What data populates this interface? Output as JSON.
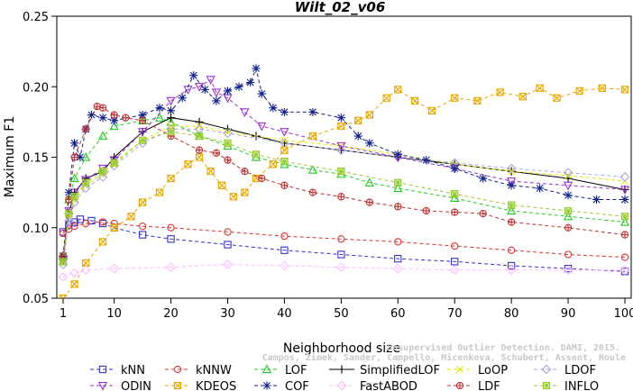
{
  "chart_data": {
    "type": "line",
    "title": "Wilt_02_v06",
    "xlabel": "Neighborhood size",
    "ylabel": "Maximum F1",
    "xlim": [
      1,
      100
    ],
    "ylim": [
      0.05,
      0.25
    ],
    "xticks": [
      "1",
      "10",
      "20",
      "30",
      "40",
      "50",
      "60",
      "70",
      "80",
      "90",
      "100"
    ],
    "yticks": [
      "0.05",
      "0.10",
      "0.15",
      "0.20",
      "0.25"
    ],
    "grid": false,
    "legend_position": "bottom",
    "watermark": [
      "Campos, Zimek, Sander, Campello, Micenkova, Schubert, Assent, Houle",
      "Unsupervised Outlier Detection. DAMI, 2015."
    ],
    "series": [
      {
        "name": "kNN",
        "color": "#3333cc",
        "marker": "square",
        "dash": "4,3",
        "points": [
          [
            1,
            0.097
          ],
          [
            2,
            0.102
          ],
          [
            3,
            0.104
          ],
          [
            4,
            0.106
          ],
          [
            6,
            0.105
          ],
          [
            8,
            0.103
          ],
          [
            10,
            0.1
          ],
          [
            15,
            0.095
          ],
          [
            20,
            0.092
          ],
          [
            30,
            0.088
          ],
          [
            40,
            0.084
          ],
          [
            50,
            0.081
          ],
          [
            60,
            0.078
          ],
          [
            70,
            0.076
          ],
          [
            80,
            0.073
          ],
          [
            90,
            0.071
          ],
          [
            100,
            0.069
          ]
        ]
      },
      {
        "name": "kNNW",
        "color": "#dd3333",
        "marker": "circle",
        "dash": "4,3",
        "points": [
          [
            1,
            0.096
          ],
          [
            2,
            0.099
          ],
          [
            3,
            0.101
          ],
          [
            5,
            0.103
          ],
          [
            8,
            0.104
          ],
          [
            10,
            0.103
          ],
          [
            15,
            0.101
          ],
          [
            20,
            0.1
          ],
          [
            30,
            0.097
          ],
          [
            40,
            0.094
          ],
          [
            50,
            0.092
          ],
          [
            60,
            0.09
          ],
          [
            70,
            0.087
          ],
          [
            80,
            0.084
          ],
          [
            90,
            0.081
          ],
          [
            100,
            0.079
          ]
        ]
      },
      {
        "name": "LOF",
        "color": "#22cc22",
        "marker": "triangle",
        "dash": "4,3",
        "points": [
          [
            1,
            0.08
          ],
          [
            2,
            0.12
          ],
          [
            3,
            0.135
          ],
          [
            5,
            0.15
          ],
          [
            8,
            0.165
          ],
          [
            10,
            0.172
          ],
          [
            15,
            0.176
          ],
          [
            18,
            0.178
          ],
          [
            20,
            0.175
          ],
          [
            25,
            0.165
          ],
          [
            30,
            0.158
          ],
          [
            35,
            0.15
          ],
          [
            40,
            0.145
          ],
          [
            45,
            0.141
          ],
          [
            50,
            0.138
          ],
          [
            55,
            0.132
          ],
          [
            60,
            0.128
          ],
          [
            70,
            0.121
          ],
          [
            80,
            0.112
          ],
          [
            90,
            0.108
          ],
          [
            100,
            0.104
          ]
        ]
      },
      {
        "name": "SimplifiedLOF",
        "color": "#000000",
        "marker": "plus",
        "dash": "",
        "points": [
          [
            1,
            0.078
          ],
          [
            2,
            0.11
          ],
          [
            3,
            0.125
          ],
          [
            5,
            0.135
          ],
          [
            8,
            0.14
          ],
          [
            10,
            0.15
          ],
          [
            15,
            0.168
          ],
          [
            20,
            0.178
          ],
          [
            25,
            0.175
          ],
          [
            30,
            0.17
          ],
          [
            35,
            0.165
          ],
          [
            40,
            0.16
          ],
          [
            50,
            0.155
          ],
          [
            60,
            0.15
          ],
          [
            70,
            0.145
          ],
          [
            80,
            0.14
          ],
          [
            90,
            0.135
          ],
          [
            100,
            0.127
          ]
        ]
      },
      {
        "name": "LoOP",
        "color": "#e6e600",
        "marker": "cross",
        "dash": "4,3",
        "points": [
          [
            1,
            0.075
          ],
          [
            2,
            0.108
          ],
          [
            3,
            0.12
          ],
          [
            5,
            0.13
          ],
          [
            8,
            0.138
          ],
          [
            10,
            0.145
          ],
          [
            15,
            0.162
          ],
          [
            20,
            0.172
          ],
          [
            25,
            0.172
          ],
          [
            30,
            0.168
          ],
          [
            40,
            0.162
          ],
          [
            50,
            0.158
          ],
          [
            60,
            0.152
          ],
          [
            70,
            0.145
          ],
          [
            80,
            0.14
          ],
          [
            90,
            0.137
          ],
          [
            100,
            0.133
          ]
        ]
      },
      {
        "name": "LDOF",
        "color": "#aaaadd",
        "marker": "diamond",
        "dash": "4,3",
        "points": [
          [
            1,
            0.074
          ],
          [
            2,
            0.105
          ],
          [
            3,
            0.118
          ],
          [
            5,
            0.128
          ],
          [
            8,
            0.136
          ],
          [
            10,
            0.144
          ],
          [
            15,
            0.16
          ],
          [
            20,
            0.17
          ],
          [
            25,
            0.17
          ],
          [
            30,
            0.167
          ],
          [
            40,
            0.16
          ],
          [
            50,
            0.155
          ],
          [
            60,
            0.15
          ],
          [
            70,
            0.146
          ],
          [
            80,
            0.142
          ],
          [
            90,
            0.139
          ],
          [
            100,
            0.136
          ]
        ]
      },
      {
        "name": "ODIN",
        "color": "#9933cc",
        "marker": "triangle-down",
        "dash": "4,3",
        "points": [
          [
            1,
            0.077
          ],
          [
            2,
            0.112
          ],
          [
            3,
            0.125
          ],
          [
            5,
            0.134
          ],
          [
            8,
            0.142
          ],
          [
            10,
            0.148
          ],
          [
            15,
            0.168
          ],
          [
            20,
            0.19
          ],
          [
            23,
            0.198
          ],
          [
            25,
            0.2
          ],
          [
            27,
            0.205
          ],
          [
            28,
            0.196
          ],
          [
            30,
            0.192
          ],
          [
            33,
            0.182
          ],
          [
            36,
            0.172
          ],
          [
            40,
            0.168
          ],
          [
            50,
            0.158
          ],
          [
            60,
            0.15
          ],
          [
            70,
            0.142
          ],
          [
            80,
            0.133
          ],
          [
            90,
            0.13
          ],
          [
            100,
            0.127
          ]
        ]
      },
      {
        "name": "KDEOS",
        "color": "#e6a800",
        "marker": "square-x",
        "dash": "4,3",
        "points": [
          [
            1,
            0.05
          ],
          [
            3,
            0.06
          ],
          [
            5,
            0.075
          ],
          [
            8,
            0.09
          ],
          [
            10,
            0.1
          ],
          [
            13,
            0.108
          ],
          [
            15,
            0.118
          ],
          [
            18,
            0.125
          ],
          [
            20,
            0.135
          ],
          [
            23,
            0.145
          ],
          [
            25,
            0.15
          ],
          [
            27,
            0.14
          ],
          [
            29,
            0.13
          ],
          [
            31,
            0.122
          ],
          [
            33,
            0.125
          ],
          [
            35,
            0.135
          ],
          [
            38,
            0.145
          ],
          [
            40,
            0.155
          ],
          [
            45,
            0.165
          ],
          [
            50,
            0.172
          ],
          [
            53,
            0.176
          ],
          [
            55,
            0.18
          ],
          [
            58,
            0.192
          ],
          [
            60,
            0.198
          ],
          [
            63,
            0.19
          ],
          [
            66,
            0.183
          ],
          [
            70,
            0.192
          ],
          [
            74,
            0.19
          ],
          [
            78,
            0.196
          ],
          [
            82,
            0.193
          ],
          [
            85,
            0.199
          ],
          [
            88,
            0.192
          ],
          [
            92,
            0.197
          ],
          [
            96,
            0.199
          ],
          [
            100,
            0.198
          ]
        ]
      },
      {
        "name": "COF",
        "color": "#112288",
        "marker": "star",
        "dash": "4,3",
        "points": [
          [
            1,
            0.08
          ],
          [
            2,
            0.125
          ],
          [
            3,
            0.16
          ],
          [
            4,
            0.15
          ],
          [
            5,
            0.17
          ],
          [
            6,
            0.18
          ],
          [
            8,
            0.178
          ],
          [
            10,
            0.176
          ],
          [
            15,
            0.18
          ],
          [
            18,
            0.185
          ],
          [
            20,
            0.183
          ],
          [
            22,
            0.192
          ],
          [
            24,
            0.208
          ],
          [
            26,
            0.198
          ],
          [
            28,
            0.19
          ],
          [
            30,
            0.197
          ],
          [
            32,
            0.2
          ],
          [
            34,
            0.203
          ],
          [
            35,
            0.213
          ],
          [
            36,
            0.195
          ],
          [
            38,
            0.185
          ],
          [
            40,
            0.182
          ],
          [
            45,
            0.182
          ],
          [
            50,
            0.178
          ],
          [
            53,
            0.165
          ],
          [
            55,
            0.16
          ],
          [
            60,
            0.152
          ],
          [
            65,
            0.148
          ],
          [
            70,
            0.142
          ],
          [
            75,
            0.135
          ],
          [
            80,
            0.13
          ],
          [
            85,
            0.128
          ],
          [
            90,
            0.123
          ],
          [
            95,
            0.12
          ],
          [
            100,
            0.12
          ]
        ]
      },
      {
        "name": "FastABOD",
        "color": "#ffbbff",
        "marker": "diamond",
        "dash": "4,3",
        "points": [
          [
            1,
            0.065
          ],
          [
            3,
            0.068
          ],
          [
            5,
            0.07
          ],
          [
            10,
            0.071
          ],
          [
            20,
            0.072
          ],
          [
            30,
            0.074
          ],
          [
            40,
            0.073
          ],
          [
            50,
            0.072
          ],
          [
            60,
            0.071
          ],
          [
            70,
            0.07
          ],
          [
            80,
            0.07
          ],
          [
            90,
            0.07
          ],
          [
            100,
            0.07
          ]
        ]
      },
      {
        "name": "LDF",
        "color": "#bb3333",
        "marker": "circle-plus",
        "dash": "4,3",
        "points": [
          [
            1,
            0.08
          ],
          [
            2,
            0.12
          ],
          [
            3,
            0.15
          ],
          [
            5,
            0.17
          ],
          [
            7,
            0.186
          ],
          [
            8,
            0.185
          ],
          [
            10,
            0.18
          ],
          [
            12,
            0.178
          ],
          [
            15,
            0.176
          ],
          [
            20,
            0.165
          ],
          [
            25,
            0.155
          ],
          [
            28,
            0.153
          ],
          [
            30,
            0.148
          ],
          [
            33,
            0.14
          ],
          [
            36,
            0.135
          ],
          [
            40,
            0.13
          ],
          [
            45,
            0.125
          ],
          [
            50,
            0.122
          ],
          [
            55,
            0.118
          ],
          [
            60,
            0.115
          ],
          [
            65,
            0.112
          ],
          [
            70,
            0.111
          ],
          [
            75,
            0.11
          ],
          [
            80,
            0.104
          ],
          [
            90,
            0.1
          ],
          [
            100,
            0.095
          ]
        ]
      },
      {
        "name": "INFLO",
        "color": "#99cc33",
        "marker": "star-box",
        "dash": "4,3",
        "points": [
          [
            1,
            0.076
          ],
          [
            2,
            0.11
          ],
          [
            3,
            0.122
          ],
          [
            5,
            0.132
          ],
          [
            8,
            0.14
          ],
          [
            10,
            0.146
          ],
          [
            15,
            0.162
          ],
          [
            20,
            0.168
          ],
          [
            25,
            0.165
          ],
          [
            30,
            0.16
          ],
          [
            35,
            0.152
          ],
          [
            40,
            0.147
          ],
          [
            50,
            0.14
          ],
          [
            60,
            0.132
          ],
          [
            70,
            0.124
          ],
          [
            80,
            0.116
          ],
          [
            90,
            0.112
          ],
          [
            100,
            0.108
          ]
        ]
      }
    ]
  }
}
